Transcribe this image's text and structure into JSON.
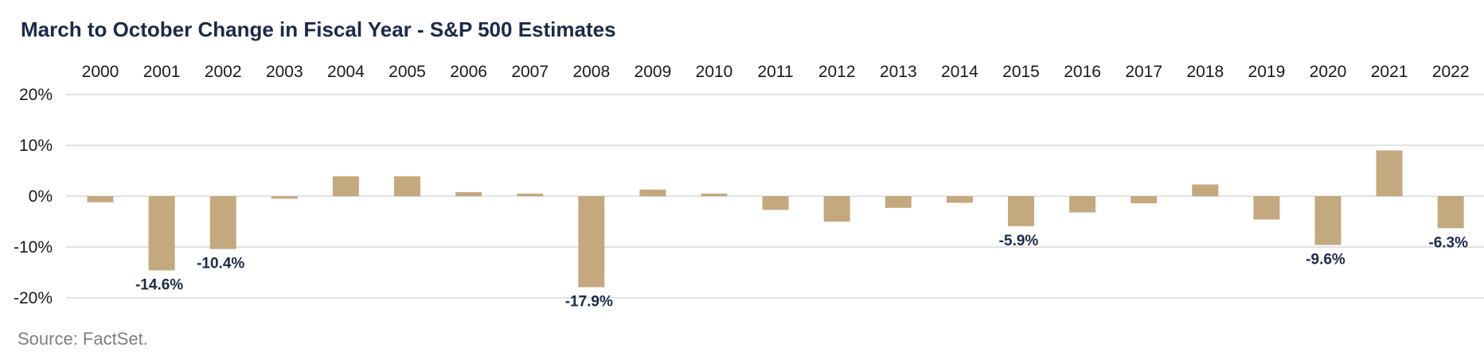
{
  "chart_data": {
    "type": "bar",
    "title": "March to October Change in Fiscal Year - S&P 500 Estimates",
    "categories": [
      "2000",
      "2001",
      "2002",
      "2003",
      "2004",
      "2005",
      "2006",
      "2007",
      "2008",
      "2009",
      "2010",
      "2011",
      "2012",
      "2013",
      "2014",
      "2015",
      "2016",
      "2017",
      "2018",
      "2019",
      "2020",
      "2021",
      "2022"
    ],
    "values": [
      -1.2,
      -14.6,
      -10.4,
      -0.5,
      3.9,
      3.9,
      0.8,
      0.5,
      -17.9,
      1.3,
      0.5,
      -2.7,
      -5.0,
      -2.3,
      -1.3,
      -5.9,
      -3.2,
      -1.4,
      2.3,
      -4.6,
      -9.6,
      9.0,
      -6.3
    ],
    "data_labels": [
      {
        "category": "2001",
        "text": "-14.6%"
      },
      {
        "category": "2002",
        "text": "-10.4%"
      },
      {
        "category": "2008",
        "text": "-17.9%"
      },
      {
        "category": "2015",
        "text": "-5.9%"
      },
      {
        "category": "2020",
        "text": "-9.6%"
      },
      {
        "category": "2022",
        "text": "-6.3%"
      }
    ],
    "yticks": [
      "20%",
      "10%",
      "0%",
      "-10%",
      "-20%"
    ],
    "ylim": [
      -20,
      20
    ],
    "xaxis_position": "top",
    "grid": true,
    "bar_color": "#c4a97f",
    "gridline_color": "#d9d9d9",
    "xlabel": "",
    "ylabel": ""
  },
  "footer": {
    "source": "Source: FactSet."
  }
}
